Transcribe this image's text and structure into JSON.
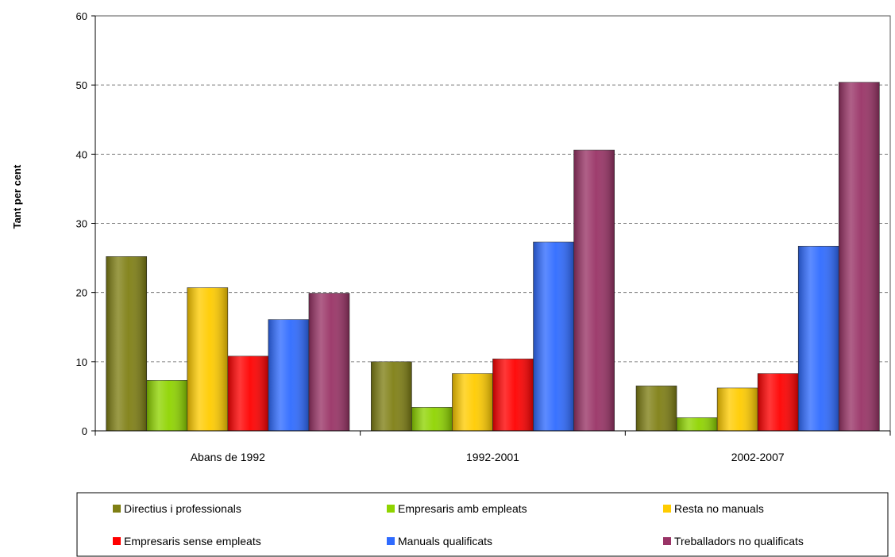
{
  "chart_data": {
    "type": "bar",
    "ylabel": "Tant per cent",
    "xlabel": "",
    "ylim": [
      0,
      60
    ],
    "yticks": [
      0,
      10,
      20,
      30,
      40,
      50,
      60
    ],
    "grid": "horizontal dashed",
    "legend_position": "bottom",
    "categories": [
      "Abans de 1992",
      "1992-2001",
      "2002-2007"
    ],
    "series": [
      {
        "name": "Directius i professionals",
        "color": "#7f7f14",
        "values": [
          25.2,
          10.0,
          6.5
        ]
      },
      {
        "name": "Empresaris amb empleats",
        "color": "#8fd400",
        "values": [
          7.3,
          3.4,
          1.9
        ]
      },
      {
        "name": "Resta no manuals",
        "color": "#ffcc00",
        "values": [
          20.7,
          8.3,
          6.2
        ]
      },
      {
        "name": "Empresaris sense empleats",
        "color": "#ff0000",
        "values": [
          10.8,
          10.4,
          8.3
        ]
      },
      {
        "name": "Manuals qualificats",
        "color": "#2f6bff",
        "values": [
          16.1,
          27.3,
          26.7
        ]
      },
      {
        "name": "Treballadors no qualificats",
        "color": "#993366",
        "values": [
          19.9,
          40.6,
          50.4
        ]
      }
    ]
  }
}
